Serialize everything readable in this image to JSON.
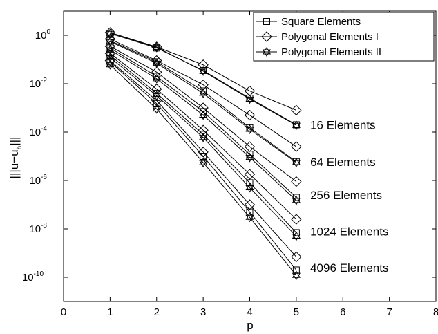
{
  "chart_data": {
    "type": "line",
    "y_scale": "log",
    "xlabel": "p",
    "ylabel_parts": [
      "|||u−u",
      "h",
      "|||"
    ],
    "xlim": [
      0,
      8
    ],
    "ylim": [
      1e-11,
      10
    ],
    "x_ticks": [
      "0",
      "1",
      "2",
      "3",
      "4",
      "5",
      "6",
      "7",
      "8"
    ],
    "y_ticks": [
      {
        "value": 1,
        "base": "10",
        "exp": "0"
      },
      {
        "value": 0.01,
        "base": "10",
        "exp": "-2"
      },
      {
        "value": 0.0001,
        "base": "10",
        "exp": "-4"
      },
      {
        "value": 1e-06,
        "base": "10",
        "exp": "-6"
      },
      {
        "value": 1e-08,
        "base": "10",
        "exp": "-8"
      },
      {
        "value": 1e-10,
        "base": "10",
        "exp": "-10"
      }
    ],
    "grid": false,
    "legend_position": "top-right",
    "legend": [
      {
        "label": "Square Elements",
        "marker": "square"
      },
      {
        "label": "Polygonal Elements I",
        "marker": "diamond"
      },
      {
        "label": "Polygonal Elements II",
        "marker": "hexagram"
      }
    ],
    "annotations": [
      {
        "text": "16 Elements",
        "x": 5.3,
        "y": 0.0002
      },
      {
        "text": "64 Elements",
        "x": 5.3,
        "y": 6e-06
      },
      {
        "text": "256 Elements",
        "x": 5.3,
        "y": 2.5e-07
      },
      {
        "text": "1024 Elements",
        "x": 5.3,
        "y": 8e-09
      },
      {
        "text": "4096 Elements",
        "x": 5.3,
        "y": 2.5e-10
      }
    ],
    "x": [
      1,
      2,
      3,
      4,
      5
    ],
    "series": [
      {
        "group": "16 Elements",
        "marker": "square",
        "values": [
          1.2,
          0.3,
          0.035,
          0.0025,
          0.0002
        ]
      },
      {
        "group": "16 Elements",
        "marker": "diamond",
        "values": [
          1.3,
          0.33,
          0.06,
          0.005,
          0.0008
        ]
      },
      {
        "group": "16 Elements",
        "marker": "hexagram",
        "values": [
          1.2,
          0.32,
          0.033,
          0.0023,
          0.00019
        ]
      },
      {
        "group": "64 Elements",
        "marker": "square",
        "values": [
          0.6,
          0.08,
          0.005,
          0.00015,
          6e-06
        ]
      },
      {
        "group": "64 Elements",
        "marker": "diamond",
        "values": [
          0.7,
          0.09,
          0.009,
          0.0005,
          2.5e-05
        ]
      },
      {
        "group": "64 Elements",
        "marker": "hexagram",
        "values": [
          0.55,
          0.07,
          0.004,
          0.00013,
          5.5e-06
        ]
      },
      {
        "group": "256 Elements",
        "marker": "square",
        "values": [
          0.3,
          0.02,
          0.0007,
          1.2e-05,
          2e-07
        ]
      },
      {
        "group": "256 Elements",
        "marker": "diamond",
        "values": [
          0.35,
          0.03,
          0.001,
          2.5e-05,
          9e-07
        ]
      },
      {
        "group": "256 Elements",
        "marker": "hexagram",
        "values": [
          0.25,
          0.016,
          0.0005,
          9e-06,
          1.5e-07
        ]
      },
      {
        "group": "1024 Elements",
        "marker": "square",
        "values": [
          0.15,
          0.004,
          8e-05,
          8e-07,
          7e-09
        ]
      },
      {
        "group": "1024 Elements",
        "marker": "diamond",
        "values": [
          0.18,
          0.006,
          0.00012,
          1.8e-06,
          2.5e-08
        ]
      },
      {
        "group": "1024 Elements",
        "marker": "hexagram",
        "values": [
          0.12,
          0.0032,
          6e-05,
          5e-07,
          5e-09
        ]
      },
      {
        "group": "4096 Elements",
        "marker": "square",
        "values": [
          0.08,
          0.0015,
          1e-05,
          5e-08,
          2e-10
        ]
      },
      {
        "group": "4096 Elements",
        "marker": "diamond",
        "values": [
          0.09,
          0.002,
          1.5e-05,
          1e-07,
          7e-10
        ]
      },
      {
        "group": "4096 Elements",
        "marker": "hexagram",
        "values": [
          0.06,
          0.0009,
          5.5e-06,
          3e-08,
          1.2e-10
        ]
      }
    ]
  }
}
